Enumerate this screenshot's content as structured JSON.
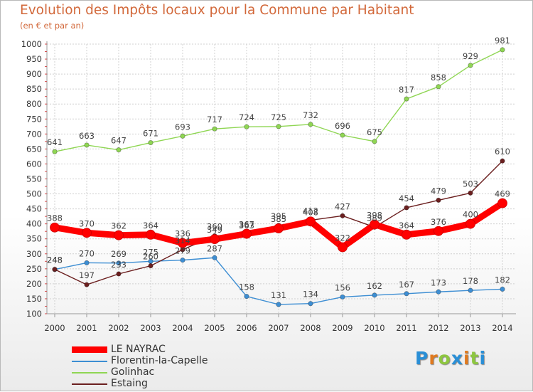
{
  "title": "Evolution des Impôts locaux pour la Commune par Habitant",
  "subtitle": "(en € et par an)",
  "brand": {
    "text": "Proxiti",
    "letter_colors": [
      "#2a8fd6",
      "#e07a1f",
      "#8dc63f",
      "#2a8fd6",
      "#e07a1f",
      "#8dc63f",
      "#2a8fd6"
    ]
  },
  "chart_data": {
    "type": "line",
    "x": [
      "2000",
      "2001",
      "2002",
      "2003",
      "2004",
      "2005",
      "2006",
      "2007",
      "2008",
      "2009",
      "2010",
      "2011",
      "2012",
      "2013",
      "2014"
    ],
    "yticks": [
      100,
      150,
      200,
      250,
      300,
      350,
      400,
      450,
      500,
      550,
      600,
      650,
      700,
      750,
      800,
      850,
      900,
      950,
      1000
    ],
    "ylim": [
      100,
      1000
    ],
    "xlabel": "",
    "ylabel": "",
    "series": [
      {
        "name": "LE NAYRAC",
        "color": "#ff0000",
        "values": [
          388,
          370,
          362,
          364,
          336,
          349,
          367,
          385,
          408,
          322,
          398,
          364,
          376,
          400,
          469
        ]
      },
      {
        "name": "Florentin-la-Capelle",
        "color": "#3d8ed3",
        "values": [
          248,
          270,
          269,
          275,
          279,
          287,
          158,
          131,
          134,
          156,
          162,
          167,
          173,
          178,
          182
        ]
      },
      {
        "name": "Golinhac",
        "color": "#8fd653",
        "values": [
          641,
          663,
          647,
          671,
          693,
          717,
          724,
          725,
          732,
          696,
          675,
          817,
          858,
          929,
          981
        ]
      },
      {
        "name": "Estaing",
        "color": "#6b1f1f",
        "values": [
          248,
          197,
          233,
          260,
          314,
          360,
          363,
          395,
          412,
          427,
          389,
          454,
          479,
          503,
          610
        ]
      }
    ]
  }
}
